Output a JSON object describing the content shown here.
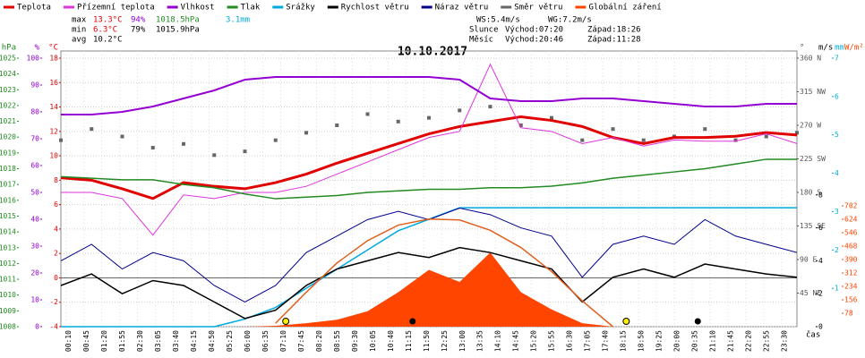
{
  "chart_data": {
    "type": "line",
    "title": "10.10.2017",
    "xlabel": "čas",
    "stats": {
      "max": [
        "max",
        "13.3°C",
        "94%",
        "1018.5hPa",
        "3.1mm"
      ],
      "min": [
        "min",
        "6.3°C",
        "79%",
        "1015.9hPa"
      ],
      "avg": [
        "avg",
        "10.2°C"
      ],
      "wind": [
        "WS:5.4m/s",
        "WG:7.2m/s"
      ],
      "sun": [
        "Slunce",
        "Východ:07:20",
        "Západ:18:26"
      ],
      "moon": [
        "Měsíc",
        "Východ:20:46",
        "Západ:11:28"
      ]
    },
    "sun_times": [
      "07:20",
      "18:26"
    ],
    "moon_times": [
      "11:28",
      "20:46"
    ],
    "xlim": [
      0,
      1440
    ],
    "xticks": [
      {
        "value": 10,
        "label": "00:10"
      },
      {
        "value": 45,
        "label": "00:45"
      },
      {
        "value": 80,
        "label": "01:20"
      },
      {
        "value": 115,
        "label": "01:55"
      },
      {
        "value": 150,
        "label": "02:30"
      },
      {
        "value": 185,
        "label": "03:05"
      },
      {
        "value": 220,
        "label": "03:40"
      },
      {
        "value": 255,
        "label": "04:15"
      },
      {
        "value": 290,
        "label": "04:50"
      },
      {
        "value": 325,
        "label": "05:25"
      },
      {
        "value": 360,
        "label": "06:00"
      },
      {
        "value": 395,
        "label": "06:35"
      },
      {
        "value": 430,
        "label": "07:10"
      },
      {
        "value": 465,
        "label": "07:45"
      },
      {
        "value": 500,
        "label": "08:20"
      },
      {
        "value": 535,
        "label": "08:55"
      },
      {
        "value": 570,
        "label": "09:30"
      },
      {
        "value": 605,
        "label": "10:05"
      },
      {
        "value": 640,
        "label": "10:40"
      },
      {
        "value": 675,
        "label": "11:15"
      },
      {
        "value": 710,
        "label": "11:50"
      },
      {
        "value": 745,
        "label": "12:25"
      },
      {
        "value": 780,
        "label": "13:00"
      },
      {
        "value": 815,
        "label": "13:35"
      },
      {
        "value": 850,
        "label": "14:10"
      },
      {
        "value": 885,
        "label": "14:45"
      },
      {
        "value": 920,
        "label": "15:20"
      },
      {
        "value": 955,
        "label": "15:55"
      },
      {
        "value": 990,
        "label": "16:30"
      },
      {
        "value": 1025,
        "label": "17:05"
      },
      {
        "value": 1060,
        "label": "17:40"
      },
      {
        "value": 1095,
        "label": "18:15"
      },
      {
        "value": 1130,
        "label": "18:50"
      },
      {
        "value": 1165,
        "label": "19:25"
      },
      {
        "value": 1200,
        "label": "20:00"
      },
      {
        "value": 1235,
        "label": "20:35"
      },
      {
        "value": 1270,
        "label": "21:10"
      },
      {
        "value": 1305,
        "label": "21:45"
      },
      {
        "value": 1340,
        "label": "22:20"
      },
      {
        "value": 1375,
        "label": "22:55"
      },
      {
        "value": 1410,
        "label": "23:30"
      }
    ],
    "x": [
      0,
      60,
      120,
      180,
      240,
      300,
      360,
      420,
      480,
      540,
      600,
      660,
      720,
      780,
      840,
      900,
      960,
      1020,
      1080,
      1140,
      1200,
      1260,
      1320,
      1380,
      1440
    ],
    "axes": {
      "pres": {
        "label": "hPa",
        "color": "#228b22",
        "lim": [
          1008,
          1025
        ],
        "ticks": [
          1008,
          1009,
          1010,
          1011,
          1012,
          1013,
          1014,
          1015,
          1016,
          1017,
          1018,
          1019,
          1020,
          1021,
          1022,
          1023,
          1024,
          1025
        ]
      },
      "hum": {
        "label": "%",
        "color": "#9400d3",
        "lim": [
          0,
          100
        ],
        "ticks": [
          0,
          10,
          20,
          30,
          40,
          50,
          60,
          70,
          80,
          90,
          100
        ]
      },
      "temp": {
        "label": "°C",
        "color": "#e00000",
        "lim": [
          -4,
          18
        ],
        "ticks": [
          -4,
          -2,
          0,
          2,
          4,
          6,
          8,
          10,
          12,
          14,
          16,
          18
        ]
      },
      "dir": {
        "label": "°",
        "color": "#555555",
        "lim": [
          0,
          360
        ],
        "ticks": [
          {
            "value": 45,
            "label": "45 NE"
          },
          {
            "value": 90,
            "label": "90 E"
          },
          {
            "value": 135,
            "label": "135 SE"
          },
          {
            "value": 180,
            "label": "180 S"
          },
          {
            "value": 225,
            "label": "225 SW"
          },
          {
            "value": 270,
            "label": "270 W"
          },
          {
            "value": 315,
            "label": "315 NW"
          },
          {
            "value": 360,
            "label": "360 N"
          }
        ]
      },
      "wind": {
        "label": "m/s",
        "color": "#000000",
        "lim": [
          0,
          16.3
        ],
        "ticks": [
          0,
          2,
          4,
          6,
          8
        ]
      },
      "rain": {
        "label": "mm",
        "color": "#00aadd",
        "lim": [
          0,
          7
        ],
        "ticks": [
          1,
          2,
          3,
          4,
          5,
          6,
          7
        ]
      },
      "rad": {
        "label": "W/m²",
        "color": "#ff4500",
        "lim": [
          0,
          1560
        ],
        "ticks": [
          78,
          156,
          234,
          312,
          390,
          468,
          546,
          624,
          702
        ]
      }
    },
    "series": [
      {
        "name": "Teplota",
        "color": "#e00000",
        "axis": "temp",
        "kind": "line",
        "width": 3,
        "values": [
          8.2,
          8.0,
          7.3,
          6.5,
          7.8,
          7.5,
          7.3,
          7.8,
          8.5,
          9.4,
          10.2,
          11.0,
          11.8,
          12.4,
          12.8,
          13.2,
          12.9,
          12.4,
          11.5,
          11.0,
          11.5,
          11.5,
          11.6,
          11.9,
          11.7
        ]
      },
      {
        "name": "Přízemní teplota",
        "color": "#dd33dd",
        "axis": "temp",
        "kind": "line",
        "width": 1,
        "values": [
          7.0,
          7.0,
          6.5,
          3.5,
          6.8,
          6.5,
          7.0,
          7.0,
          7.5,
          8.5,
          9.5,
          10.5,
          11.5,
          12.0,
          17.5,
          12.3,
          12.0,
          11.0,
          11.5,
          10.8,
          11.3,
          11.2,
          11.2,
          11.8,
          11.0
        ]
      },
      {
        "name": "Vlhkost",
        "color": "#9400d3",
        "axis": "hum",
        "kind": "line",
        "width": 2,
        "values": [
          79,
          79,
          80,
          82,
          85,
          88,
          92,
          93,
          93,
          93,
          93,
          93,
          93,
          92,
          85,
          84,
          84,
          85,
          85,
          84,
          83,
          82,
          82,
          83,
          83
        ]
      },
      {
        "name": "Tlak",
        "color": "#228b22",
        "axis": "pres",
        "kind": "line",
        "width": 1.5,
        "values": [
          1017.5,
          1017.4,
          1017.3,
          1017.3,
          1017.0,
          1016.8,
          1016.4,
          1016.1,
          1016.2,
          1016.3,
          1016.5,
          1016.6,
          1016.7,
          1016.7,
          1016.8,
          1016.8,
          1016.9,
          1017.1,
          1017.4,
          1017.6,
          1017.8,
          1018.0,
          1018.3,
          1018.6,
          1018.6
        ]
      },
      {
        "name": "Srážky",
        "color": "#00aadd",
        "axis": "rain",
        "kind": "line",
        "width": 1.5,
        "values": [
          0,
          0,
          0,
          0,
          0,
          0,
          0.2,
          0.5,
          1.0,
          1.5,
          2.0,
          2.5,
          2.8,
          3.1,
          3.1,
          3.1,
          3.1,
          3.1,
          3.1,
          3.1,
          3.1,
          3.1,
          3.1,
          3.1,
          3.1
        ]
      },
      {
        "name": "Rychlost větru",
        "color": "#000000",
        "axis": "wind",
        "kind": "line",
        "width": 1.5,
        "values": [
          2.5,
          3.2,
          2.0,
          2.8,
          2.5,
          1.5,
          0.5,
          1.0,
          2.5,
          3.5,
          4.0,
          4.5,
          4.2,
          4.8,
          4.5,
          4.0,
          3.5,
          1.5,
          3.0,
          3.5,
          3.0,
          3.8,
          3.5,
          3.2,
          3.0
        ]
      },
      {
        "name": "Náraz větru",
        "color": "#00008b",
        "axis": "wind",
        "kind": "line",
        "width": 1,
        "values": [
          4,
          5,
          3.5,
          4.5,
          4,
          2.5,
          1.5,
          2.5,
          4.5,
          5.5,
          6.5,
          7,
          6.5,
          7.2,
          6.8,
          6,
          5.5,
          3,
          5,
          5.5,
          5,
          6.5,
          5.5,
          5,
          4.5
        ]
      },
      {
        "name": "Směr větru",
        "color": "#666666",
        "axis": "dir",
        "kind": "scatter",
        "values": [
          250,
          265,
          255,
          240,
          245,
          230,
          235,
          250,
          260,
          270,
          285,
          275,
          280,
          290,
          295,
          270,
          280,
          250,
          265,
          250,
          255,
          265,
          250,
          255,
          260
        ]
      },
      {
        "name": "Globální záření",
        "color": "#ff4500",
        "axis": "rad",
        "kind": "area",
        "values": [
          0,
          0,
          0,
          0,
          0,
          0,
          0,
          5,
          20,
          40,
          90,
          200,
          330,
          260,
          430,
          200,
          100,
          20,
          0,
          0,
          0,
          0,
          0,
          0,
          0
        ]
      }
    ],
    "theoretical_radiation": {
      "color": "#e06020",
      "axis": "rad",
      "values": [
        null,
        null,
        null,
        null,
        null,
        null,
        null,
        20,
        200,
        370,
        500,
        590,
        625,
        620,
        560,
        460,
        320,
        150,
        0,
        null,
        null,
        null,
        null,
        null,
        null
      ]
    }
  }
}
